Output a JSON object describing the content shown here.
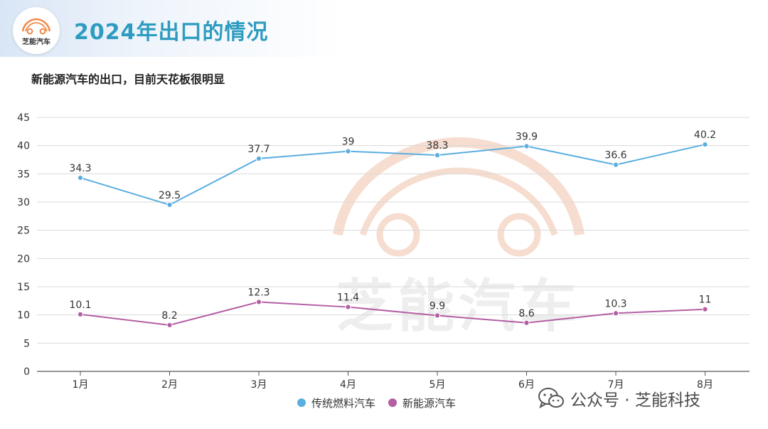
{
  "header": {
    "title": "2024年出口的情况",
    "logo_text": "芝能汽车",
    "logo_icon": "car-outline-icon"
  },
  "watermark": {
    "text": "芝能汽车",
    "icon": "car-outline-icon"
  },
  "credit": {
    "text": "公众号 · 芝能科技",
    "icon": "wechat-icon"
  },
  "colors": {
    "title": "#2e9cc0",
    "series_traditional": "#5aaee0",
    "series_nev": "#b45fa3",
    "grid": "#d9d9d9",
    "watermark": "#f6ddcf"
  },
  "chart_data": {
    "type": "line",
    "title": "新能源汽车的出口，目前天花板很明显",
    "xlabel": "",
    "ylabel": "",
    "categories": [
      "1月",
      "2月",
      "3月",
      "4月",
      "5月",
      "6月",
      "7月",
      "8月"
    ],
    "ylim": [
      0,
      45
    ],
    "yticks": [
      0,
      5,
      10,
      15,
      20,
      25,
      30,
      35,
      40,
      45
    ],
    "grid": true,
    "legend_position": "bottom",
    "series": [
      {
        "name": "传统燃料汽车",
        "color": "#5aaee0",
        "values": [
          34.3,
          29.5,
          37.7,
          39,
          38.3,
          39.9,
          36.6,
          40.2
        ]
      },
      {
        "name": "新能源汽车",
        "color": "#b45fa3",
        "values": [
          10.1,
          8.2,
          12.3,
          11.4,
          9.9,
          8.6,
          10.3,
          11
        ]
      }
    ]
  }
}
